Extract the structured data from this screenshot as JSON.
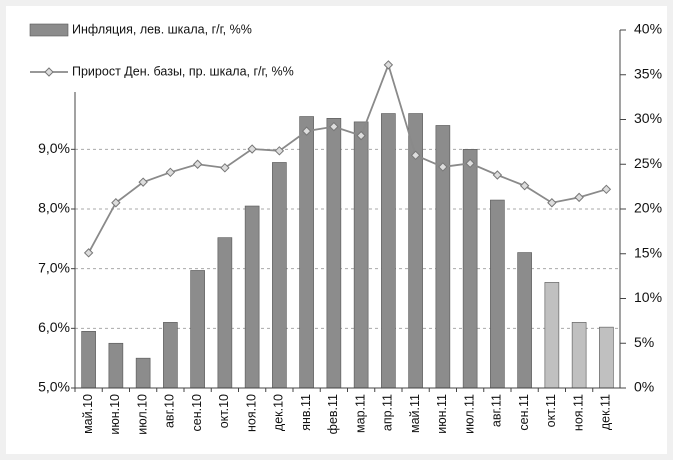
{
  "chart_data": {
    "type": "bar",
    "categories": [
      "май.10",
      "июн.10",
      "июл.10",
      "авг.10",
      "сен.10",
      "окт.10",
      "ноя.10",
      "дек.10",
      "янв.11",
      "фев.11",
      "мар.11",
      "апр.11",
      "май.11",
      "июн.11",
      "июл.11",
      "авг.11",
      "сен.11",
      "окт.11",
      "ноя.11",
      "дек.11"
    ],
    "series": [
      {
        "name": "Инфляция, лев. шкала, г/г, %%",
        "type": "bar",
        "color": "#8c8c8c",
        "colors": [
          "#8c8c8c",
          "#8c8c8c",
          "#8c8c8c",
          "#8c8c8c",
          "#8c8c8c",
          "#8c8c8c",
          "#8c8c8c",
          "#8c8c8c",
          "#8c8c8c",
          "#8c8c8c",
          "#8c8c8c",
          "#8c8c8c",
          "#8c8c8c",
          "#8c8c8c",
          "#8c8c8c",
          "#8c8c8c",
          "#8c8c8c",
          "#c0c0c0",
          "#c0c0c0",
          "#c0c0c0"
        ],
        "values": [
          5.95,
          5.75,
          5.5,
          6.1,
          6.97,
          7.52,
          8.05,
          8.78,
          9.55,
          9.52,
          9.46,
          9.6,
          9.6,
          9.4,
          9.0,
          8.15,
          7.27,
          6.77,
          6.1,
          6.02
        ]
      },
      {
        "name": "Прирост Ден. базы, пр. шкала, г/г, %%",
        "type": "line",
        "axis": "y2",
        "color": "#8a8a8a",
        "values": [
          15.1,
          20.7,
          23.0,
          24.1,
          25.0,
          24.6,
          26.7,
          26.5,
          28.7,
          29.2,
          28.2,
          36.1,
          26.0,
          24.7,
          25.1,
          23.8,
          22.6,
          20.7,
          21.3,
          22.2
        ]
      }
    ],
    "ylim": [
      5,
      11
    ],
    "yticks": [
      {
        "value": 5,
        "label": "5,0%"
      },
      {
        "value": 6,
        "label": "6,0%"
      },
      {
        "value": 7,
        "label": "7,0%"
      },
      {
        "value": 8,
        "label": "8,0%"
      },
      {
        "value": 9,
        "label": "9,0%"
      }
    ],
    "y2lim": [
      0,
      40
    ],
    "y2ticks": [
      {
        "value": 0,
        "label": "0%"
      },
      {
        "value": 5,
        "label": "5%"
      },
      {
        "value": 10,
        "label": "10%"
      },
      {
        "value": 15,
        "label": "15%"
      },
      {
        "value": 20,
        "label": "20%"
      },
      {
        "value": 25,
        "label": "25%"
      },
      {
        "value": 30,
        "label": "30%"
      },
      {
        "value": 35,
        "label": "35%"
      },
      {
        "value": 40,
        "label": "40%"
      }
    ],
    "grid": true,
    "legend": "top-left"
  }
}
